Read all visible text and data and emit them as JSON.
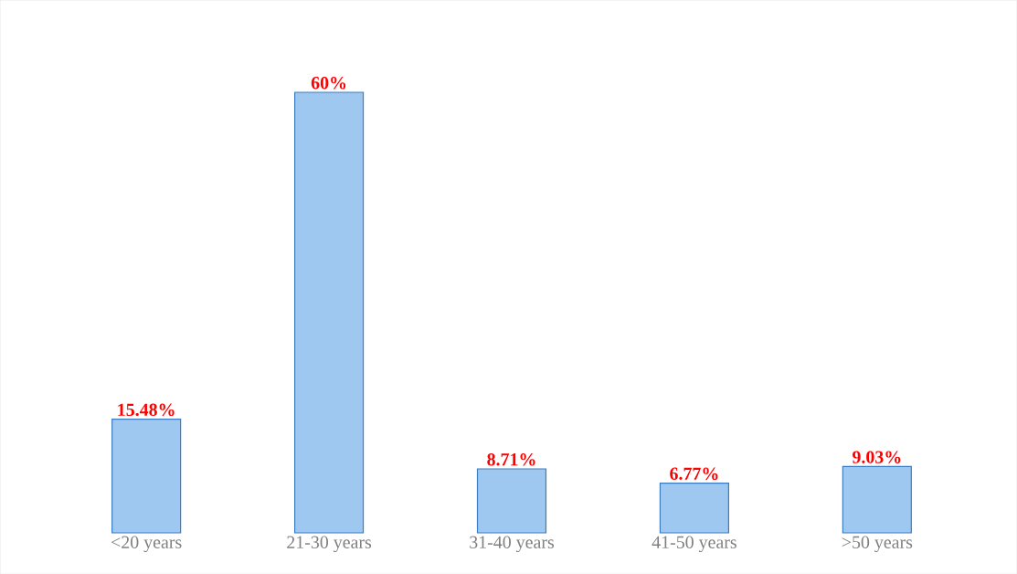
{
  "chart_data": {
    "type": "bar",
    "categories": [
      "<20 years",
      "21-30 years",
      "31-40 years",
      "41-50 years",
      ">50 years"
    ],
    "values": [
      15.48,
      60,
      8.71,
      6.77,
      9.03
    ],
    "value_labels": [
      "15.48%",
      "60%",
      "8.71%",
      "6.77%",
      "9.03%"
    ],
    "color": "#9fc8f0"
  }
}
